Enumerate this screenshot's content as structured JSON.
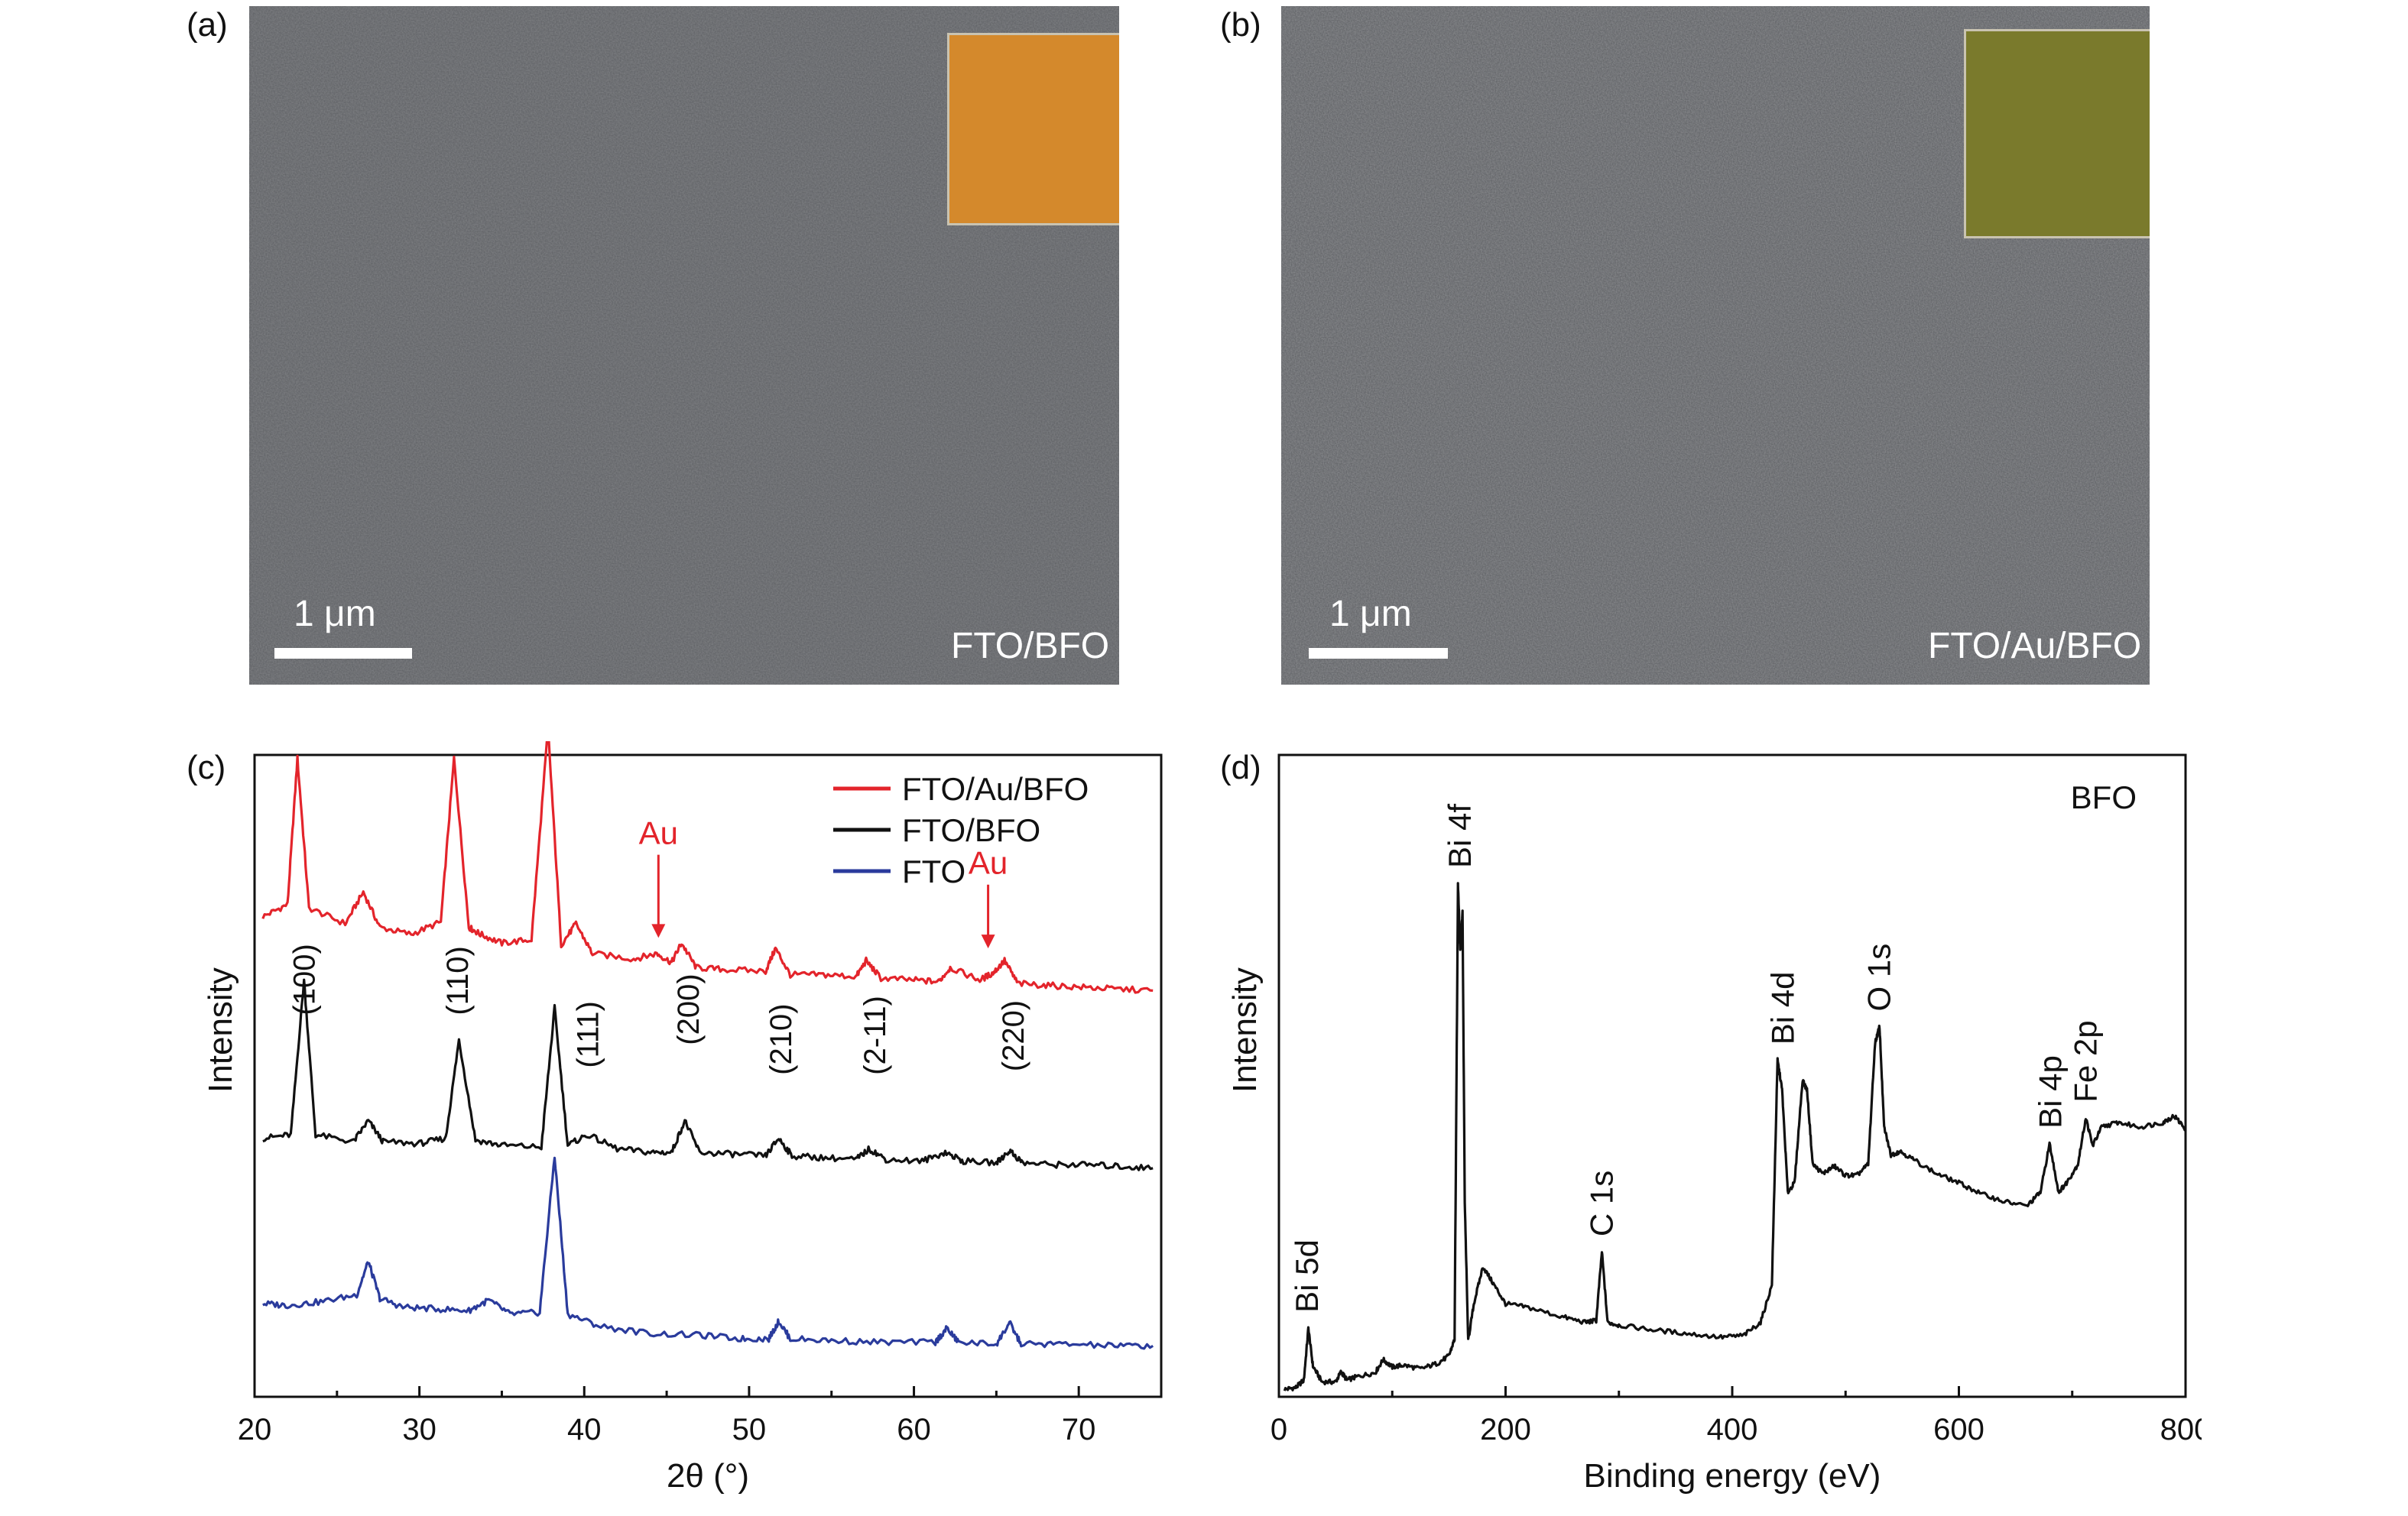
{
  "panels": {
    "a": {
      "label": "(a)",
      "scale_text": "1 μm",
      "sample_text": "FTO/BFO",
      "inset_color": "#d4892c"
    },
    "b": {
      "label": "(b)",
      "scale_text": "1 μm",
      "sample_text": "FTO/Au/BFO",
      "inset_color": "#7a7a2c"
    },
    "c": {
      "label": "(c)"
    },
    "d": {
      "label": "(d)"
    }
  },
  "chart_data": [
    {
      "type": "line",
      "xlabel": "2θ (°)",
      "ylabel": "Intensity",
      "xlim": [
        20,
        75
      ],
      "xticks": [
        20,
        30,
        40,
        50,
        60,
        70
      ],
      "legend": {
        "placement": "top-right"
      },
      "series": [
        {
          "name": "FTO/Au/BFO",
          "color": "#e3242b",
          "offset": 2.0,
          "x": [
            20.5,
            22.0,
            22.6,
            23.3,
            25.5,
            26.6,
            27.6,
            29.5,
            31.3,
            32.1,
            33.0,
            33.7,
            35.0,
            36.8,
            37.8,
            38.6,
            39.5,
            40.5,
            43.0,
            44.4,
            45.3,
            45.9,
            46.8,
            48.5,
            51.0,
            51.6,
            52.5,
            54.5,
            56.5,
            57.1,
            58.0,
            60.0,
            61.5,
            62.2,
            64.0,
            64.8,
            65.5,
            66.3,
            68.0,
            70.0,
            72.0,
            74.5
          ],
          "y": [
            0.48,
            0.55,
            1.38,
            0.53,
            0.44,
            0.62,
            0.42,
            0.38,
            0.45,
            1.38,
            0.42,
            0.38,
            0.33,
            0.35,
            1.55,
            0.32,
            0.44,
            0.27,
            0.24,
            0.27,
            0.22,
            0.33,
            0.19,
            0.18,
            0.17,
            0.3,
            0.15,
            0.15,
            0.14,
            0.23,
            0.13,
            0.12,
            0.11,
            0.19,
            0.12,
            0.16,
            0.23,
            0.1,
            0.09,
            0.08,
            0.07,
            0.06
          ]
        },
        {
          "name": "FTO/BFO",
          "color": "#111111",
          "offset": 1.0,
          "x": [
            20.5,
            22.2,
            23.0,
            23.7,
            26.0,
            26.9,
            27.8,
            30.0,
            31.6,
            32.4,
            33.4,
            35.0,
            37.4,
            38.2,
            39.0,
            40.2,
            42.0,
            44.0,
            45.3,
            46.1,
            47.0,
            49.0,
            51.0,
            51.8,
            52.6,
            54.5,
            56.5,
            57.3,
            58.3,
            60.5,
            61.9,
            63.0,
            65.0,
            65.8,
            66.6,
            68.5,
            70.5,
            72.5,
            74.5
          ],
          "y": [
            0.22,
            0.24,
            1.12,
            0.24,
            0.2,
            0.32,
            0.2,
            0.19,
            0.22,
            0.78,
            0.21,
            0.18,
            0.17,
            0.96,
            0.18,
            0.24,
            0.16,
            0.14,
            0.14,
            0.32,
            0.14,
            0.13,
            0.12,
            0.22,
            0.12,
            0.11,
            0.1,
            0.16,
            0.1,
            0.09,
            0.14,
            0.09,
            0.08,
            0.15,
            0.08,
            0.07,
            0.07,
            0.06,
            0.05
          ]
        },
        {
          "name": "FTO",
          "color": "#2a3b9c",
          "offset": 0.0,
          "x": [
            20.5,
            22.0,
            24.0,
            26.2,
            26.9,
            27.6,
            29.0,
            31.0,
            33.0,
            34.2,
            35.5,
            37.3,
            38.2,
            39.0,
            41.0,
            44.0,
            47.0,
            49.5,
            51.2,
            51.8,
            52.5,
            55.0,
            58.0,
            61.3,
            62.0,
            62.7,
            65.0,
            65.8,
            66.5,
            69.0,
            72.0,
            74.5
          ],
          "y": [
            0.28,
            0.27,
            0.29,
            0.33,
            0.52,
            0.31,
            0.26,
            0.25,
            0.24,
            0.3,
            0.22,
            0.23,
            1.12,
            0.22,
            0.15,
            0.11,
            0.1,
            0.08,
            0.08,
            0.18,
            0.08,
            0.07,
            0.06,
            0.06,
            0.14,
            0.06,
            0.05,
            0.17,
            0.05,
            0.05,
            0.04,
            0.04
          ]
        }
      ],
      "peak_labels": [
        {
          "text": "(100)",
          "x": 23.0,
          "y": 1.92
        },
        {
          "text": "(110)",
          "x": 32.3,
          "y": 1.92
        },
        {
          "text": "(111)",
          "x": 40.2,
          "y": 1.62
        },
        {
          "text": "(200)",
          "x": 46.3,
          "y": 1.75
        },
        {
          "text": "(210)",
          "x": 51.9,
          "y": 1.58
        },
        {
          "text": "(2-11)",
          "x": 57.6,
          "y": 1.58
        },
        {
          "text": "(220)",
          "x": 66.0,
          "y": 1.6
        }
      ],
      "annotations": [
        {
          "text": "Au",
          "x": 44.5,
          "arrow_from": 2.85,
          "arrow_to": 2.36,
          "color": "#e3242b"
        },
        {
          "text": "Au",
          "x": 64.5,
          "arrow_from": 2.68,
          "arrow_to": 2.3,
          "color": "#e3242b"
        }
      ]
    },
    {
      "type": "line",
      "xlabel": "Binding energy (eV)",
      "ylabel": "Intensity",
      "title": "BFO",
      "xlim": [
        0,
        800
      ],
      "xticks": [
        0,
        200,
        400,
        600,
        800
      ],
      "series": [
        {
          "name": "",
          "color": "#111111",
          "x": [
            5,
            15,
            22,
            26,
            30,
            38,
            50,
            55,
            60,
            70,
            85,
            92,
            100,
            110,
            125,
            140,
            150,
            155,
            158,
            160,
            162,
            164,
            167,
            172,
            180,
            190,
            200,
            220,
            250,
            270,
            280,
            285,
            290,
            300,
            330,
            360,
            390,
            410,
            425,
            435,
            440,
            444,
            449,
            455,
            462,
            466,
            471,
            480,
            490,
            500,
            510,
            520,
            526,
            530,
            534,
            540,
            548,
            560,
            580,
            600,
            620,
            640,
            660,
            672,
            680,
            688,
            695,
            705,
            712,
            718,
            726,
            740,
            760,
            780,
            790,
            800
          ],
          "y": [
            0.08,
            0.1,
            0.18,
            0.74,
            0.33,
            0.16,
            0.16,
            0.27,
            0.18,
            0.22,
            0.26,
            0.4,
            0.32,
            0.34,
            0.3,
            0.36,
            0.44,
            0.62,
            5.52,
            4.8,
            5.22,
            2.1,
            0.6,
            1.0,
            1.4,
            1.2,
            1.0,
            0.96,
            0.86,
            0.8,
            0.82,
            1.56,
            0.8,
            0.77,
            0.72,
            0.68,
            0.64,
            0.66,
            0.8,
            1.2,
            3.62,
            3.3,
            2.2,
            2.3,
            3.4,
            3.3,
            2.5,
            2.4,
            2.48,
            2.38,
            2.38,
            2.5,
            3.8,
            3.98,
            2.9,
            2.6,
            2.64,
            2.55,
            2.4,
            2.3,
            2.18,
            2.1,
            2.05,
            2.2,
            2.72,
            2.2,
            2.3,
            2.5,
            3.0,
            2.7,
            2.9,
            2.95,
            2.9,
            2.95,
            3.02,
            2.88
          ]
        }
      ],
      "peak_labels": [
        {
          "text": "Bi 5d",
          "x": 25
        },
        {
          "text": "Bi 4f",
          "x": 160
        },
        {
          "text": "C 1s",
          "x": 285
        },
        {
          "text": "Bi 4d",
          "x": 445
        },
        {
          "text": "O 1s",
          "x": 530
        },
        {
          "text": "Bi 4p",
          "x": 681
        },
        {
          "text": "Fe 2p",
          "x": 712
        }
      ]
    }
  ]
}
